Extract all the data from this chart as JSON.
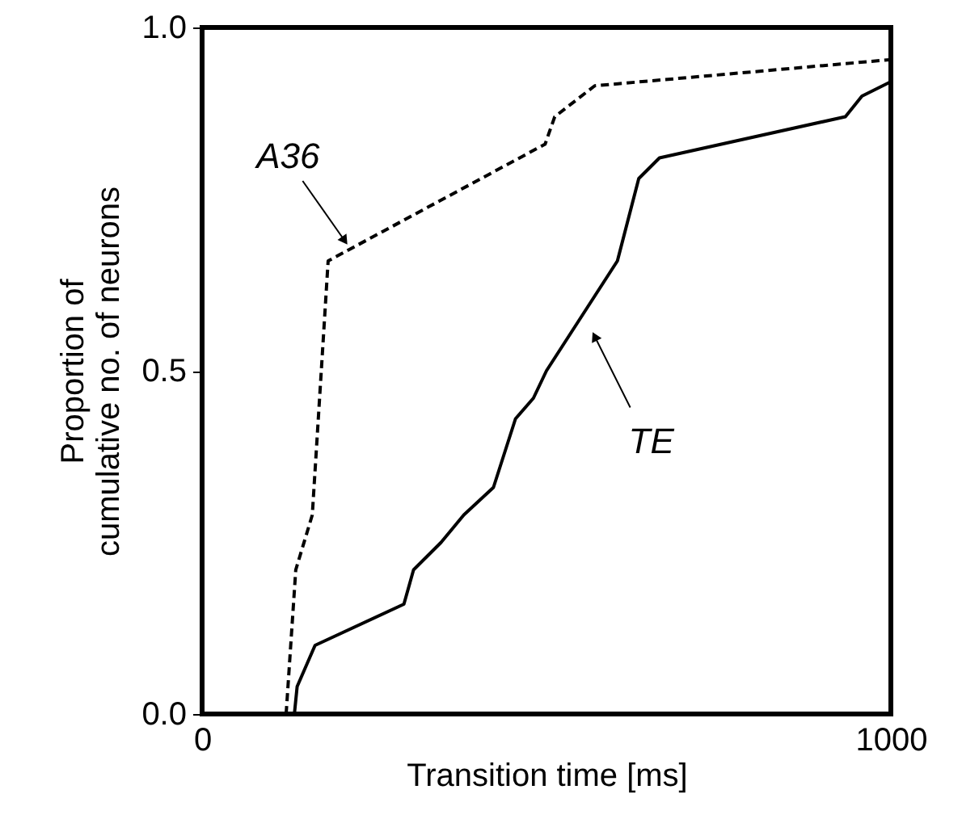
{
  "chart_data": {
    "type": "line",
    "xlabel": "Transition time [ms]",
    "ylabel": "Proportion of\ncumulative no. of neurons",
    "series": [
      {
        "color": "#000000",
        "line_style": "dashed",
        "x": [
          122,
          136,
          160,
          183,
          498,
          512,
          570,
          998
        ],
        "values": [
          0,
          0.21,
          0.29,
          0.66,
          0.83,
          0.87,
          0.915,
          0.953
        ]
      },
      {
        "color": "#000000",
        "line_style": "solid",
        "x": [
          134,
          138,
          164,
          293,
          307,
          347,
          380,
          423,
          455,
          481,
          500,
          603,
          634,
          664,
          934,
          958,
          998
        ],
        "values": [
          0,
          0.04,
          0.1,
          0.16,
          0.21,
          0.25,
          0.29,
          0.33,
          0.43,
          0.46,
          0.5,
          0.66,
          0.78,
          0.81,
          0.87,
          0.9,
          0.92
        ]
      }
    ],
    "annotations": [
      {
        "text": "A36",
        "x": 207,
        "y": 0.673
      },
      {
        "text": "TE",
        "x": 570,
        "y": 0.55
      }
    ],
    "xlim": [
      0,
      1000
    ],
    "xticks": [
      0,
      1000
    ],
    "ylim": [
      0,
      1.0
    ],
    "yticks": [
      {
        "value": 0,
        "label": "0.0"
      },
      {
        "value": 0.5,
        "label": "0.5"
      },
      {
        "value": 1.0,
        "label": "1.0"
      }
    ],
    "grid": false,
    "marker": "none"
  }
}
